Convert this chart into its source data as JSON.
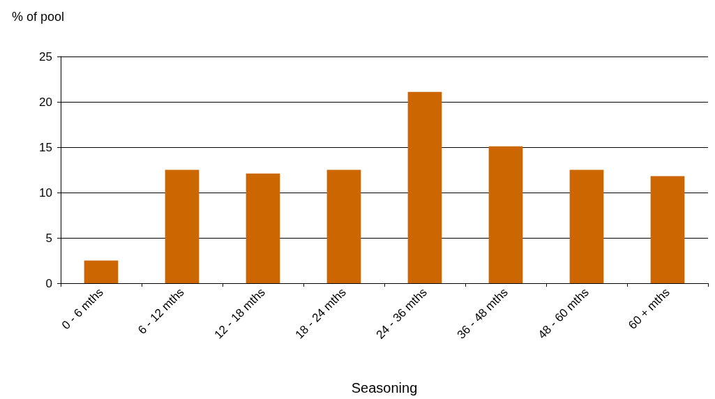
{
  "chart_data": {
    "type": "bar",
    "xlabel": "Seasoning",
    "ylabel": "% of pool",
    "categories": [
      "0 - 6 mths",
      "6 - 12 mths",
      "12 - 18 mths",
      "18 - 24 mths",
      "24 - 36 mths",
      "36 - 48 mths",
      "48 - 60 mths",
      "60 + mths"
    ],
    "values": [
      2.5,
      12.5,
      12.1,
      12.5,
      21.1,
      15.1,
      12.5,
      11.8
    ],
    "color": "#cc6600",
    "ylim": [
      0,
      25
    ],
    "yticks": [
      0,
      5,
      10,
      15,
      20,
      25
    ],
    "grid": "y"
  }
}
